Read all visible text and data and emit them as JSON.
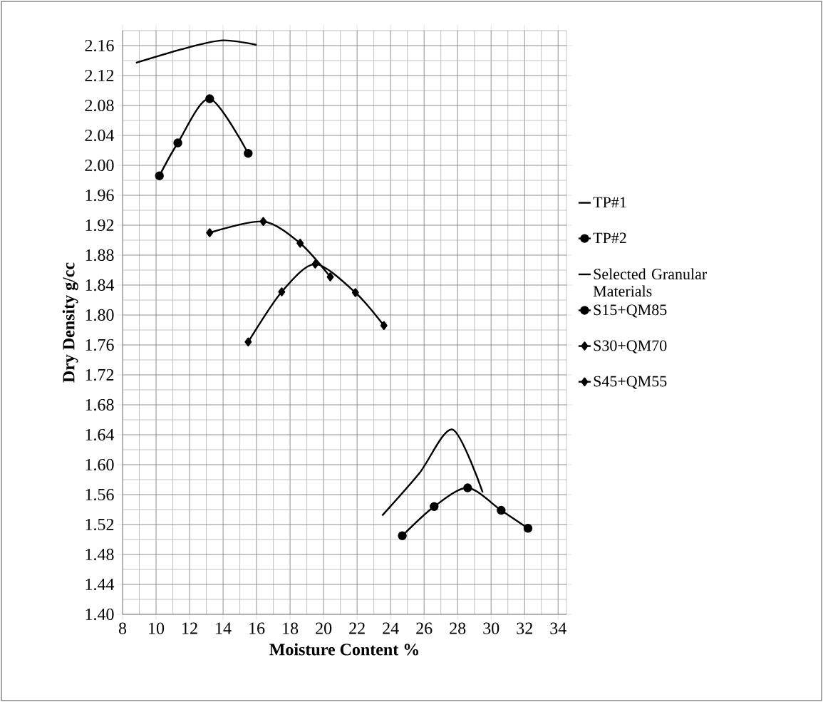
{
  "chart_data": {
    "type": "line",
    "xlabel": "Moisture Content  %",
    "ylabel": "Dry Density  g/cc",
    "xlim": [
      8,
      34.5
    ],
    "xticks": [
      8,
      10,
      12,
      14,
      16,
      18,
      20,
      22,
      24,
      26,
      28,
      30,
      32,
      34
    ],
    "ylim": [
      1.4,
      2.18
    ],
    "yticks": [
      {
        "value": 1.4,
        "label": "1.40"
      },
      {
        "value": 1.44,
        "label": "1.44"
      },
      {
        "value": 1.48,
        "label": "1.48"
      },
      {
        "value": 1.52,
        "label": "1.52"
      },
      {
        "value": 1.56,
        "label": "1.56"
      },
      {
        "value": 1.6,
        "label": "1.60"
      },
      {
        "value": 1.64,
        "label": "1.64"
      },
      {
        "value": 1.68,
        "label": "1.68"
      },
      {
        "value": 1.72,
        "label": "1.72"
      },
      {
        "value": 1.76,
        "label": "1.76"
      },
      {
        "value": 1.8,
        "label": "1.80"
      },
      {
        "value": 1.84,
        "label": "1.84"
      },
      {
        "value": 1.88,
        "label": "1.88"
      },
      {
        "value": 1.92,
        "label": "1.92"
      },
      {
        "value": 1.96,
        "label": "1.96"
      },
      {
        "value": 2.0,
        "label": "2.00"
      },
      {
        "value": 2.04,
        "label": "2.04"
      },
      {
        "value": 2.08,
        "label": "2.08"
      },
      {
        "value": 2.12,
        "label": "2.12"
      },
      {
        "value": 2.16,
        "label": "2.16"
      }
    ],
    "grid": true,
    "legend": "right",
    "series": [
      {
        "name": "TP#1",
        "color": "#000000",
        "marker": "none",
        "x": [
          8.8,
          12,
          14,
          16
        ],
        "values": [
          2.137,
          2.158,
          2.167,
          2.161
        ]
      },
      {
        "name": "TP#2",
        "color": "#000000",
        "marker": "circle",
        "x": [
          24.7,
          26.6,
          28.6,
          30.6,
          32.2
        ],
        "values": [
          1.505,
          1.544,
          1.569,
          1.539,
          1.515
        ]
      },
      {
        "name": "Selected Granular Materials",
        "color": "#000000",
        "marker": "none",
        "x": [
          23.5,
          25.7,
          27.7,
          29.5
        ],
        "values": [
          1.532,
          1.588,
          1.647,
          1.563
        ]
      },
      {
        "name": "S15+QM85",
        "color": "#000000",
        "marker": "circle",
        "x": [
          10.2,
          11.3,
          13.2,
          15.5
        ],
        "values": [
          1.986,
          2.03,
          2.089,
          2.016
        ]
      },
      {
        "name": "S30+QM70",
        "color": "#000000",
        "marker": "diamond",
        "x": [
          13.2,
          16.4,
          18.6,
          20.4
        ],
        "values": [
          1.91,
          1.925,
          1.896,
          1.851
        ]
      },
      {
        "name": "S45+QM55",
        "color": "#000000",
        "marker": "diamond",
        "x": [
          15.5,
          17.5,
          19.5,
          21.9,
          23.6
        ],
        "values": [
          1.764,
          1.831,
          1.868,
          1.83,
          1.786
        ]
      }
    ]
  }
}
